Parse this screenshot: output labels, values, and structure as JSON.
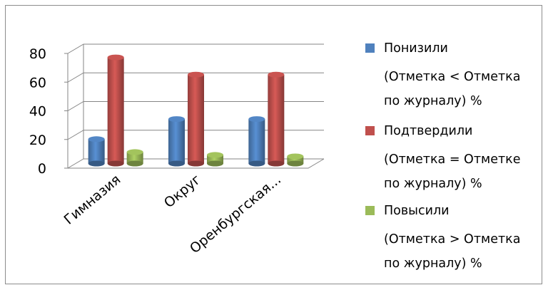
{
  "chart_data": {
    "type": "bar",
    "subtype": "3d-clustered-column",
    "categories": [
      "Гимназия",
      "Округ",
      "Оренбургская..."
    ],
    "series": [
      {
        "name": "Понизили",
        "name_detail": "(Отметка < Отметка по журналу) %",
        "color": "#4f81bd",
        "values": [
          17,
          31,
          31
        ]
      },
      {
        "name": "Подтвердили",
        "name_detail": "(Отметка = Отметке по журналу) %",
        "color": "#c0504d",
        "values": [
          74,
          62,
          62
        ]
      },
      {
        "name": "Повысили",
        "name_detail": "(Отметка > Отметка по журналу) %",
        "color": "#9bbb59",
        "values": [
          8,
          6,
          5
        ]
      }
    ],
    "ylim": [
      0,
      80
    ],
    "yticks": [
      0,
      20,
      40,
      60,
      80
    ],
    "grid": true,
    "legend_position": "right",
    "title": "",
    "xlabel": "",
    "ylabel": ""
  }
}
